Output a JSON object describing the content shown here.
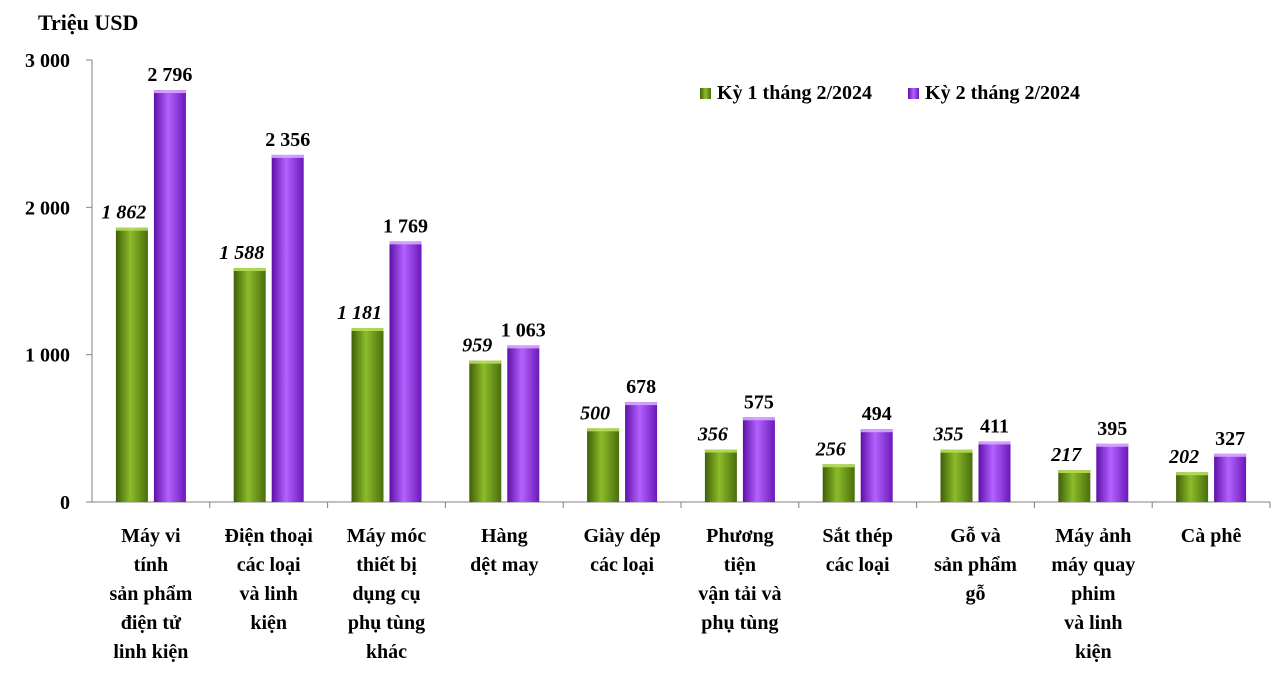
{
  "chart_data": {
    "type": "bar",
    "ylabel": "Triệu USD",
    "ylim": [
      0,
      3000
    ],
    "yticks": [
      "0",
      "1 000",
      "2 000",
      "3 000"
    ],
    "ytick_values": [
      0,
      1000,
      2000,
      3000
    ],
    "legend_position": "top-right",
    "categories": [
      "Máy vi\ntính\nsản phẩm\nđiện tử\nlinh kiện",
      "Điện thoại\ncác loại\nvà linh\nkiện",
      "Máy móc\nthiết bị\ndụng cụ\nphụ tùng\nkhác",
      "Hàng\ndệt may",
      "Giày dép\ncác loại",
      "Phương\ntiện\nvận tải và\nphụ tùng",
      "Sắt thép\ncác loại",
      "Gỗ và\nsản phẩm\ngỗ",
      "Máy ảnh\nmáy quay\nphim\nvà linh\nkiện",
      "Cà phê"
    ],
    "series": [
      {
        "name": "Kỳ 1 tháng 2/2024",
        "color": "#6f9a1a",
        "values": [
          1862,
          1588,
          1181,
          959,
          500,
          356,
          256,
          355,
          217,
          202
        ],
        "labels": [
          "1 862",
          "1 588",
          "1 181",
          "959",
          "500",
          "356",
          "256",
          "355",
          "217",
          "202"
        ]
      },
      {
        "name": "Kỳ 2 tháng 2/2024",
        "color": "#9933ee",
        "values": [
          2796,
          2356,
          1769,
          1063,
          678,
          575,
          494,
          411,
          395,
          327
        ],
        "labels": [
          "2 796",
          "2 356",
          "1 769",
          "1 063",
          "678",
          "575",
          "494",
          "411",
          "395",
          "327"
        ]
      }
    ]
  }
}
